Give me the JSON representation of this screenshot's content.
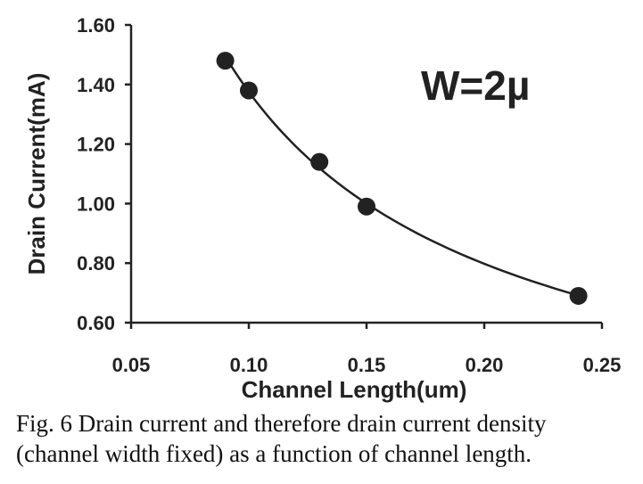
{
  "chart_data": {
    "type": "scatter",
    "title": "",
    "xlabel": "Channel Length(um)",
    "ylabel": "Drain Current(mA)",
    "xlim": [
      0.05,
      0.25
    ],
    "ylim": [
      0.6,
      1.6
    ],
    "x_ticks": [
      "0.05",
      "0.10",
      "0.15",
      "0.20",
      "0.25"
    ],
    "y_ticks": [
      "0.60",
      "0.80",
      "1.00",
      "1.20",
      "1.40",
      "1.60"
    ],
    "x_tick_values": [
      0.05,
      0.1,
      0.15,
      0.2,
      0.25
    ],
    "y_tick_values": [
      0.6,
      0.8,
      1.0,
      1.2,
      1.4,
      1.6
    ],
    "series": [
      {
        "name": "W=2µ",
        "x": [
          0.09,
          0.1,
          0.13,
          0.15,
          0.24
        ],
        "y": [
          1.48,
          1.38,
          1.14,
          0.99,
          0.69
        ],
        "trendline": true
      }
    ],
    "annotation": "W=2µ",
    "grid": false
  },
  "caption": {
    "line1": "Fig. 6 Drain current and therefore drain current density",
    "line2": "(channel width fixed) as a function of channel length."
  }
}
